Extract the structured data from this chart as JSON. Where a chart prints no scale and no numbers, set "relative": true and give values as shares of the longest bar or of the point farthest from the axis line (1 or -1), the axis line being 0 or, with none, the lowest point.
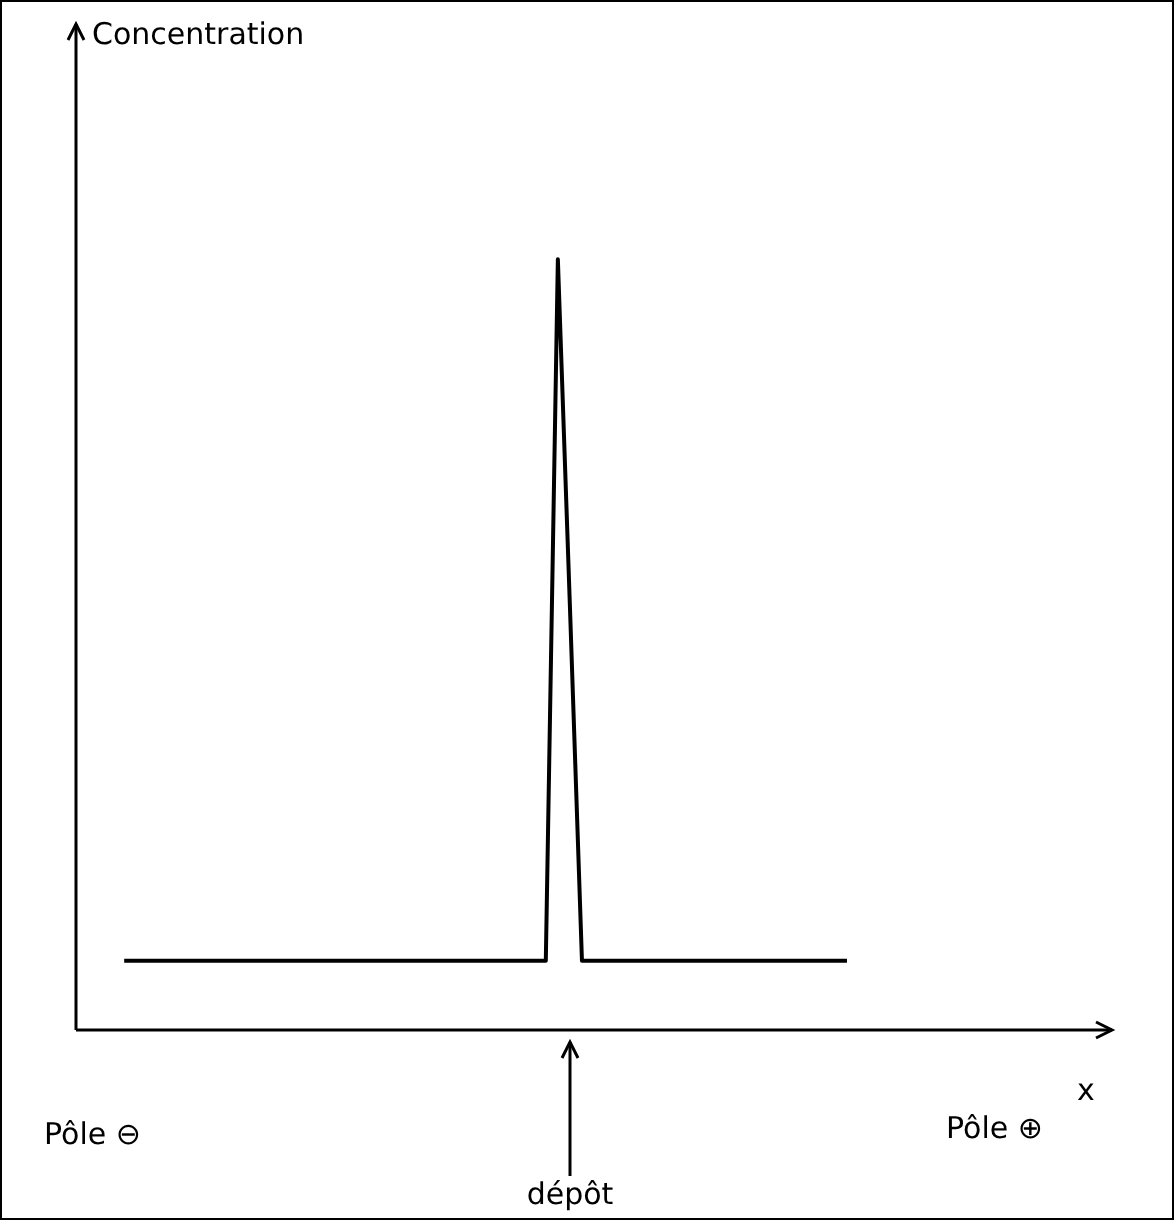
{
  "chart_data": {
    "type": "line",
    "xlabel": "x",
    "relative": true,
    "grid": false,
    "legend": false,
    "marker": "none",
    "line_style": "solid",
    "annotations": [
      "Concentration",
      "dépôt",
      "Pôle ⊖",
      "Pôle ⊕"
    ],
    "categories": [
      null,
      null,
      null,
      null,
      null,
      null,
      null,
      null,
      null,
      null,
      null,
      null,
      null,
      null,
      null,
      null,
      null,
      null,
      null,
      null,
      null,
      null,
      null,
      null,
      null,
      null,
      null,
      null,
      null,
      null,
      null,
      null,
      null,
      null,
      null,
      null,
      null,
      null,
      null,
      null,
      null,
      null,
      null,
      null,
      null,
      null,
      null,
      null,
      null,
      null,
      null,
      null,
      null,
      null,
      null,
      null,
      null,
      null,
      null,
      null,
      null,
      null,
      null,
      null,
      null,
      null,
      null,
      null,
      null,
      null,
      null,
      null,
      null,
      null,
      null,
      null,
      null,
      null,
      null,
      null,
      null,
      null,
      null,
      null,
      null,
      null,
      null
    ],
    "series": [
      {
        "color": "#000000",
        "values": [
          null,
          null,
          null,
          null,
          0.09,
          0.09,
          0.09,
          0.09,
          0.09,
          0.09,
          0.09,
          0.09,
          0.09,
          0.09,
          0.09,
          0.09,
          0.09,
          0.09,
          0.09,
          0.09,
          0.09,
          0.09,
          0.09,
          0.09,
          0.09,
          0.09,
          0.09,
          0.09,
          0.09,
          0.09,
          0.09,
          0.09,
          0.09,
          0.09,
          0.09,
          0.09,
          0.09,
          0.09,
          0.09,
          0.09,
          1,
          0.55,
          0.09,
          0.09,
          0.09,
          0.09,
          0.09,
          0.09,
          0.09,
          0.09,
          0.09,
          0.09,
          0.09,
          0.09,
          0.09,
          0.09,
          0.09,
          0.09,
          0.09,
          0.09,
          0.09,
          0.09,
          0.09,
          0.09,
          0.09,
          null,
          null,
          null,
          null,
          null,
          null,
          null,
          null,
          null,
          null,
          null,
          null,
          null,
          null,
          null,
          null,
          null,
          null,
          null,
          null,
          null,
          null
        ]
      }
    ]
  }
}
